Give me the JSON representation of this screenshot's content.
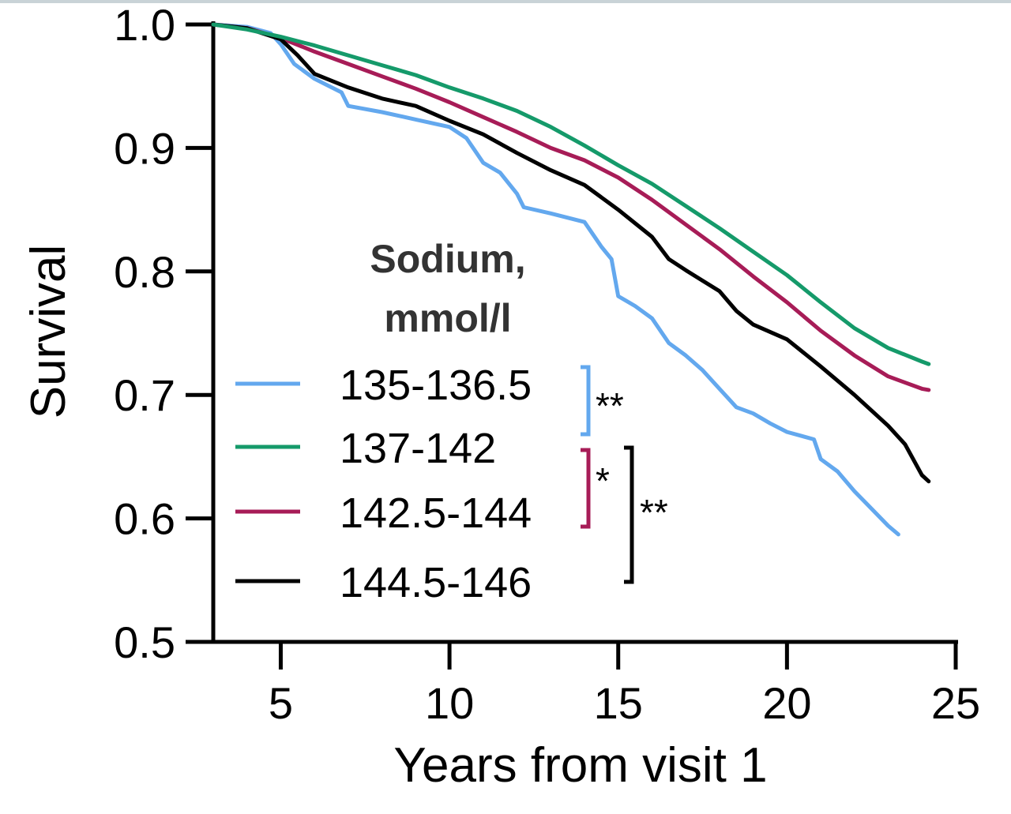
{
  "chart_data": {
    "type": "line",
    "title": "",
    "xlabel": "Years from visit 1",
    "ylabel": "Survival",
    "xlim": [
      3,
      25
    ],
    "ylim": [
      0.5,
      1.0
    ],
    "x_ticks": [
      "5",
      "10",
      "15",
      "20",
      "25"
    ],
    "y_ticks": [
      "0.5",
      "0.6",
      "0.7",
      "0.8",
      "0.9",
      "1.0"
    ],
    "legend": {
      "title_line1": "Sodium,",
      "title_line2": "mmol/l",
      "position": "center"
    },
    "series": [
      {
        "name": "135-136.5",
        "color": "#63a8ee",
        "points": [
          [
            3,
            1.0
          ],
          [
            4,
            0.998
          ],
          [
            4.7,
            0.993
          ],
          [
            5,
            0.984
          ],
          [
            5.4,
            0.968
          ],
          [
            6,
            0.956
          ],
          [
            6.8,
            0.945
          ],
          [
            7,
            0.934
          ],
          [
            8,
            0.929
          ],
          [
            9,
            0.923
          ],
          [
            10,
            0.917
          ],
          [
            10.5,
            0.908
          ],
          [
            11,
            0.888
          ],
          [
            11.5,
            0.88
          ],
          [
            12,
            0.863
          ],
          [
            12.2,
            0.852
          ],
          [
            13,
            0.847
          ],
          [
            14,
            0.84
          ],
          [
            14.5,
            0.82
          ],
          [
            14.8,
            0.81
          ],
          [
            15,
            0.78
          ],
          [
            15.5,
            0.772
          ],
          [
            16,
            0.762
          ],
          [
            16.5,
            0.742
          ],
          [
            17,
            0.732
          ],
          [
            17.5,
            0.72
          ],
          [
            18,
            0.705
          ],
          [
            18.5,
            0.69
          ],
          [
            19,
            0.685
          ],
          [
            19.5,
            0.677
          ],
          [
            20,
            0.67
          ],
          [
            20.8,
            0.664
          ],
          [
            21,
            0.648
          ],
          [
            21.5,
            0.638
          ],
          [
            22,
            0.622
          ],
          [
            22.5,
            0.608
          ],
          [
            23,
            0.594
          ],
          [
            23.3,
            0.587
          ]
        ]
      },
      {
        "name": "137-142",
        "color": "#159a6a",
        "points": [
          [
            3,
            1.0
          ],
          [
            4,
            0.996
          ],
          [
            5,
            0.99
          ],
          [
            6,
            0.983
          ],
          [
            7,
            0.975
          ],
          [
            8,
            0.967
          ],
          [
            9,
            0.959
          ],
          [
            10,
            0.949
          ],
          [
            11,
            0.94
          ],
          [
            12,
            0.93
          ],
          [
            13,
            0.917
          ],
          [
            14,
            0.902
          ],
          [
            15,
            0.886
          ],
          [
            16,
            0.871
          ],
          [
            17,
            0.853
          ],
          [
            18,
            0.835
          ],
          [
            19,
            0.816
          ],
          [
            20,
            0.797
          ],
          [
            21,
            0.775
          ],
          [
            22,
            0.754
          ],
          [
            23,
            0.738
          ],
          [
            24,
            0.727
          ],
          [
            24.2,
            0.725
          ]
        ]
      },
      {
        "name": "142.5-144",
        "color": "#a71c57",
        "points": [
          [
            3,
            1.0
          ],
          [
            4,
            0.997
          ],
          [
            5,
            0.989
          ],
          [
            6,
            0.978
          ],
          [
            7,
            0.968
          ],
          [
            8,
            0.958
          ],
          [
            9,
            0.948
          ],
          [
            10,
            0.937
          ],
          [
            11,
            0.925
          ],
          [
            12,
            0.913
          ],
          [
            13,
            0.9
          ],
          [
            14,
            0.89
          ],
          [
            15,
            0.876
          ],
          [
            16,
            0.858
          ],
          [
            17,
            0.838
          ],
          [
            18,
            0.818
          ],
          [
            19,
            0.796
          ],
          [
            20,
            0.775
          ],
          [
            21,
            0.752
          ],
          [
            22,
            0.732
          ],
          [
            23,
            0.715
          ],
          [
            24,
            0.705
          ],
          [
            24.2,
            0.704
          ]
        ]
      },
      {
        "name": "144.5-146",
        "color": "#000000",
        "points": [
          [
            3,
            1.0
          ],
          [
            4,
            0.997
          ],
          [
            5,
            0.988
          ],
          [
            5.5,
            0.975
          ],
          [
            6,
            0.96
          ],
          [
            7,
            0.949
          ],
          [
            8,
            0.94
          ],
          [
            9,
            0.934
          ],
          [
            10,
            0.922
          ],
          [
            11,
            0.911
          ],
          [
            12,
            0.896
          ],
          [
            13,
            0.882
          ],
          [
            14,
            0.87
          ],
          [
            15,
            0.85
          ],
          [
            16,
            0.828
          ],
          [
            16.5,
            0.81
          ],
          [
            17,
            0.801
          ],
          [
            18,
            0.784
          ],
          [
            18.5,
            0.768
          ],
          [
            19,
            0.757
          ],
          [
            20,
            0.745
          ],
          [
            21,
            0.723
          ],
          [
            22,
            0.7
          ],
          [
            23,
            0.675
          ],
          [
            23.5,
            0.66
          ],
          [
            24,
            0.635
          ],
          [
            24.2,
            0.63
          ]
        ]
      }
    ],
    "annotations": {
      "sig_blue": "**",
      "sig_magenta": "*",
      "sig_black": "**"
    }
  }
}
